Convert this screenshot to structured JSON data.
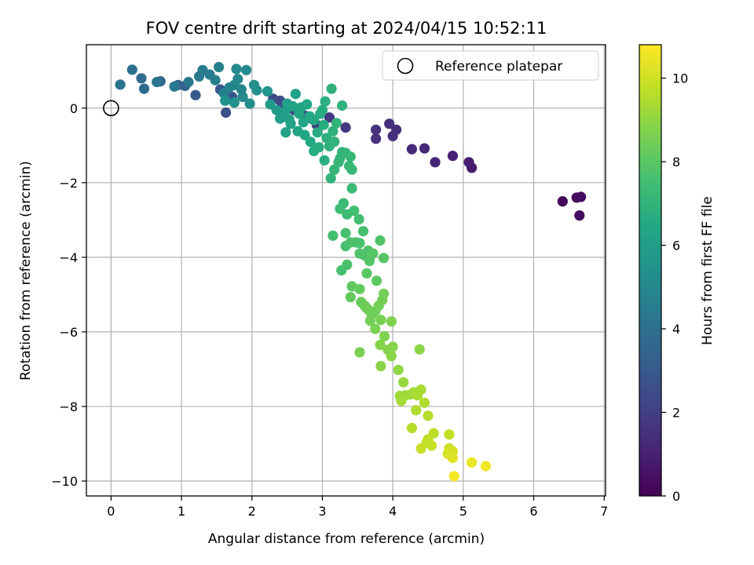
{
  "chart_data": {
    "type": "scatter",
    "title": "FOV centre drift starting at 2024/04/15 10:52:11",
    "xlabel": "Angular distance from reference (arcmin)",
    "ylabel": "Rotation from reference (arcmin)",
    "xlim": [
      -0.35,
      7.02
    ],
    "ylim": [
      -10.4,
      1.7
    ],
    "xticks": [
      0,
      1,
      2,
      3,
      4,
      5,
      6,
      7
    ],
    "yticks": [
      -10,
      -8,
      -6,
      -4,
      -2,
      0
    ],
    "xtick_labels": [
      "0",
      "1",
      "2",
      "3",
      "4",
      "5",
      "6",
      "7"
    ],
    "ytick_labels": [
      "−10",
      "−8",
      "−6",
      "−4",
      "−2",
      "0"
    ],
    "grid": true,
    "colormap": "viridis",
    "colorbar": {
      "label": "Hours from first FF file",
      "range": [
        0,
        10.8
      ],
      "ticks": [
        0,
        2,
        4,
        6,
        8,
        10
      ],
      "tick_labels": [
        "0",
        "2",
        "4",
        "6",
        "8",
        "10"
      ]
    },
    "legend": {
      "placement": "top-right",
      "entries": [
        {
          "label": "Reference platepar",
          "marker": "open-circle"
        }
      ]
    },
    "reference_point": {
      "x": 0,
      "y": 0
    },
    "series": [
      {
        "points": [
          {
            "x": 6.41,
            "y": -2.5,
            "c": 0.2
          },
          {
            "x": 6.61,
            "y": -2.4,
            "c": 0.3
          },
          {
            "x": 6.67,
            "y": -2.38,
            "c": 0.35
          },
          {
            "x": 6.65,
            "y": -2.88,
            "c": 0.4
          },
          {
            "x": 5.12,
            "y": -1.6,
            "c": 0.8
          },
          {
            "x": 5.08,
            "y": -1.45,
            "c": 0.9
          },
          {
            "x": 4.85,
            "y": -1.28,
            "c": 1.0
          },
          {
            "x": 4.6,
            "y": -1.45,
            "c": 1.1
          },
          {
            "x": 4.45,
            "y": -1.08,
            "c": 1.2
          },
          {
            "x": 4.27,
            "y": -1.1,
            "c": 1.3
          },
          {
            "x": 4.05,
            "y": -0.58,
            "c": 1.4
          },
          {
            "x": 3.95,
            "y": -0.42,
            "c": 1.45
          },
          {
            "x": 4.0,
            "y": -0.75,
            "c": 1.5
          },
          {
            "x": 3.76,
            "y": -0.58,
            "c": 1.55
          },
          {
            "x": 3.76,
            "y": -0.82,
            "c": 1.6
          },
          {
            "x": 3.33,
            "y": -0.52,
            "c": 1.7
          },
          {
            "x": 3.1,
            "y": -0.25,
            "c": 1.8
          },
          {
            "x": 2.92,
            "y": -0.45,
            "c": 1.9
          },
          {
            "x": 2.86,
            "y": -0.3,
            "c": 2.0
          },
          {
            "x": 2.75,
            "y": -0.2,
            "c": 2.1
          },
          {
            "x": 2.6,
            "y": -0.05,
            "c": 2.2
          },
          {
            "x": 2.45,
            "y": 0.1,
            "c": 2.3
          },
          {
            "x": 2.4,
            "y": 0.2,
            "c": 2.4
          },
          {
            "x": 2.3,
            "y": 0.25,
            "c": 2.5
          },
          {
            "x": 1.63,
            "y": -0.12,
            "c": 2.6
          },
          {
            "x": 1.72,
            "y": 0.3,
            "c": 2.9
          },
          {
            "x": 1.55,
            "y": 0.5,
            "c": 3.0
          },
          {
            "x": 1.2,
            "y": 0.35,
            "c": 3.1
          },
          {
            "x": 1.05,
            "y": 0.6,
            "c": 3.3
          },
          {
            "x": 0.95,
            "y": 0.62,
            "c": 3.4
          },
          {
            "x": 0.7,
            "y": 0.72,
            "c": 3.5
          },
          {
            "x": 0.47,
            "y": 0.52,
            "c": 3.7
          },
          {
            "x": 0.43,
            "y": 0.8,
            "c": 3.8
          },
          {
            "x": 0.3,
            "y": 1.03,
            "c": 4.0
          },
          {
            "x": 0.13,
            "y": 0.63,
            "c": 4.1
          },
          {
            "x": 0.65,
            "y": 0.7,
            "c": 4.2
          },
          {
            "x": 0.9,
            "y": 0.58,
            "c": 4.3
          },
          {
            "x": 1.1,
            "y": 0.7,
            "c": 4.3
          },
          {
            "x": 1.25,
            "y": 0.85,
            "c": 4.4
          },
          {
            "x": 1.3,
            "y": 1.02,
            "c": 4.5
          },
          {
            "x": 1.4,
            "y": 0.9,
            "c": 4.5
          },
          {
            "x": 1.48,
            "y": 0.75,
            "c": 4.6
          },
          {
            "x": 1.53,
            "y": 1.1,
            "c": 4.7
          },
          {
            "x": 1.6,
            "y": 0.4,
            "c": 4.7
          },
          {
            "x": 1.68,
            "y": 0.55,
            "c": 4.8
          },
          {
            "x": 1.75,
            "y": 0.62,
            "c": 4.9
          },
          {
            "x": 1.8,
            "y": 0.78,
            "c": 5.0
          },
          {
            "x": 1.87,
            "y": 0.3,
            "c": 5.0
          },
          {
            "x": 1.92,
            "y": 1.02,
            "c": 5.1
          },
          {
            "x": 1.97,
            "y": 0.12,
            "c": 5.2
          },
          {
            "x": 2.03,
            "y": 0.62,
            "c": 5.3
          },
          {
            "x": 2.07,
            "y": 0.48,
            "c": 5.3
          },
          {
            "x": 1.78,
            "y": 1.05,
            "c": 5.0
          },
          {
            "x": 1.85,
            "y": 0.5,
            "c": 4.9
          },
          {
            "x": 1.62,
            "y": 0.2,
            "c": 5.4
          },
          {
            "x": 1.75,
            "y": 0.15,
            "c": 5.5
          },
          {
            "x": 2.22,
            "y": 0.45,
            "c": 5.6
          },
          {
            "x": 2.26,
            "y": 0.1,
            "c": 5.8
          },
          {
            "x": 2.35,
            "y": -0.05,
            "c": 5.9
          },
          {
            "x": 2.4,
            "y": -0.28,
            "c": 6.0
          },
          {
            "x": 2.47,
            "y": -0.1,
            "c": 6.0
          },
          {
            "x": 2.5,
            "y": 0.12,
            "c": 6.1
          },
          {
            "x": 2.53,
            "y": -0.3,
            "c": 6.1
          },
          {
            "x": 2.58,
            "y": 0.05,
            "c": 6.2
          },
          {
            "x": 2.62,
            "y": 0.38,
            "c": 6.2
          },
          {
            "x": 2.67,
            "y": -0.15,
            "c": 6.3
          },
          {
            "x": 2.7,
            "y": 0.02,
            "c": 6.3
          },
          {
            "x": 2.73,
            "y": -0.38,
            "c": 6.4
          },
          {
            "x": 2.78,
            "y": 0.1,
            "c": 6.4
          },
          {
            "x": 2.82,
            "y": -0.22,
            "c": 6.5
          },
          {
            "x": 2.88,
            "y": -0.32,
            "c": 6.5
          },
          {
            "x": 2.93,
            "y": -0.65,
            "c": 6.6
          },
          {
            "x": 2.97,
            "y": -0.15,
            "c": 6.6
          },
          {
            "x": 3.02,
            "y": -0.45,
            "c": 6.7
          },
          {
            "x": 3.0,
            "y": -0.05,
            "c": 6.7
          },
          {
            "x": 3.04,
            "y": 0.18,
            "c": 6.8
          },
          {
            "x": 3.13,
            "y": 0.52,
            "c": 6.9
          },
          {
            "x": 3.06,
            "y": -0.8,
            "c": 6.8
          },
          {
            "x": 3.1,
            "y": -1.02,
            "c": 6.9
          },
          {
            "x": 3.15,
            "y": -0.62,
            "c": 6.9
          },
          {
            "x": 3.17,
            "y": -0.9,
            "c": 7.0
          },
          {
            "x": 3.2,
            "y": -0.4,
            "c": 7.0
          },
          {
            "x": 3.25,
            "y": -1.35,
            "c": 7.1
          },
          {
            "x": 3.28,
            "y": 0.07,
            "c": 6.9
          },
          {
            "x": 2.65,
            "y": -0.62,
            "c": 6.3
          },
          {
            "x": 2.75,
            "y": -0.72,
            "c": 6.4
          },
          {
            "x": 2.83,
            "y": -0.9,
            "c": 6.5
          },
          {
            "x": 2.88,
            "y": -1.15,
            "c": 6.6
          },
          {
            "x": 2.95,
            "y": -1.05,
            "c": 6.7
          },
          {
            "x": 3.03,
            "y": -1.4,
            "c": 6.8
          },
          {
            "x": 2.48,
            "y": -0.65,
            "c": 6.2
          },
          {
            "x": 2.55,
            "y": -0.42,
            "c": 6.2
          },
          {
            "x": 3.12,
            "y": -1.88,
            "c": 7.0
          },
          {
            "x": 3.17,
            "y": -1.65,
            "c": 7.1
          },
          {
            "x": 3.23,
            "y": -1.45,
            "c": 7.1
          },
          {
            "x": 3.28,
            "y": -1.18,
            "c": 7.0
          },
          {
            "x": 3.33,
            "y": -1.2,
            "c": 7.1
          },
          {
            "x": 3.4,
            "y": -1.3,
            "c": 7.2
          },
          {
            "x": 3.42,
            "y": -1.65,
            "c": 7.2
          },
          {
            "x": 3.38,
            "y": -1.55,
            "c": 7.2
          },
          {
            "x": 3.42,
            "y": -2.15,
            "c": 7.3
          },
          {
            "x": 3.3,
            "y": -2.55,
            "c": 7.3
          },
          {
            "x": 3.25,
            "y": -2.7,
            "c": 7.4
          },
          {
            "x": 3.35,
            "y": -2.85,
            "c": 7.4
          },
          {
            "x": 3.45,
            "y": -2.75,
            "c": 7.5
          },
          {
            "x": 3.52,
            "y": -2.98,
            "c": 7.5
          },
          {
            "x": 3.58,
            "y": -3.3,
            "c": 7.6
          },
          {
            "x": 3.15,
            "y": -3.42,
            "c": 7.5
          },
          {
            "x": 3.33,
            "y": -3.35,
            "c": 7.6
          },
          {
            "x": 3.33,
            "y": -3.7,
            "c": 7.6
          },
          {
            "x": 3.4,
            "y": -3.6,
            "c": 7.7
          },
          {
            "x": 3.48,
            "y": -3.6,
            "c": 7.7
          },
          {
            "x": 3.53,
            "y": -3.62,
            "c": 7.7
          },
          {
            "x": 3.53,
            "y": -3.9,
            "c": 7.8
          },
          {
            "x": 3.6,
            "y": -3.95,
            "c": 7.8
          },
          {
            "x": 3.65,
            "y": -3.82,
            "c": 7.8
          },
          {
            "x": 3.72,
            "y": -3.9,
            "c": 7.9
          },
          {
            "x": 3.67,
            "y": -4.1,
            "c": 7.9
          },
          {
            "x": 3.63,
            "y": -4.43,
            "c": 8.0
          },
          {
            "x": 3.82,
            "y": -3.55,
            "c": 7.8
          },
          {
            "x": 3.87,
            "y": -4.02,
            "c": 7.9
          },
          {
            "x": 3.35,
            "y": -4.2,
            "c": 7.7
          },
          {
            "x": 3.27,
            "y": -4.35,
            "c": 7.6
          },
          {
            "x": 3.77,
            "y": -4.63,
            "c": 8.1
          },
          {
            "x": 3.42,
            "y": -4.78,
            "c": 8.1
          },
          {
            "x": 3.53,
            "y": -4.85,
            "c": 8.2
          },
          {
            "x": 3.4,
            "y": -5.07,
            "c": 8.2
          },
          {
            "x": 3.55,
            "y": -5.2,
            "c": 8.3
          },
          {
            "x": 3.6,
            "y": -5.3,
            "c": 8.3
          },
          {
            "x": 3.65,
            "y": -5.4,
            "c": 8.4
          },
          {
            "x": 3.7,
            "y": -5.55,
            "c": 8.4
          },
          {
            "x": 3.75,
            "y": -5.45,
            "c": 8.4
          },
          {
            "x": 3.8,
            "y": -5.3,
            "c": 8.5
          },
          {
            "x": 3.85,
            "y": -5.15,
            "c": 8.5
          },
          {
            "x": 3.87,
            "y": -4.98,
            "c": 8.5
          },
          {
            "x": 3.68,
            "y": -5.7,
            "c": 8.5
          },
          {
            "x": 3.75,
            "y": -5.92,
            "c": 8.6
          },
          {
            "x": 3.83,
            "y": -5.68,
            "c": 8.6
          },
          {
            "x": 3.98,
            "y": -5.72,
            "c": 8.7
          },
          {
            "x": 3.62,
            "y": -5.35,
            "c": 8.4
          },
          {
            "x": 3.88,
            "y": -6.12,
            "c": 8.7
          },
          {
            "x": 3.82,
            "y": -6.35,
            "c": 8.8
          },
          {
            "x": 3.93,
            "y": -6.48,
            "c": 8.8
          },
          {
            "x": 4.0,
            "y": -6.4,
            "c": 8.8
          },
          {
            "x": 3.98,
            "y": -6.65,
            "c": 8.9
          },
          {
            "x": 3.53,
            "y": -6.55,
            "c": 8.6
          },
          {
            "x": 3.83,
            "y": -6.92,
            "c": 8.9
          },
          {
            "x": 4.38,
            "y": -6.47,
            "c": 8.9
          },
          {
            "x": 4.08,
            "y": -7.02,
            "c": 9.0
          },
          {
            "x": 4.15,
            "y": -7.35,
            "c": 9.1
          },
          {
            "x": 4.1,
            "y": -7.72,
            "c": 9.2
          },
          {
            "x": 4.18,
            "y": -7.7,
            "c": 9.2
          },
          {
            "x": 4.12,
            "y": -7.85,
            "c": 9.3
          },
          {
            "x": 4.25,
            "y": -7.68,
            "c": 9.3
          },
          {
            "x": 4.3,
            "y": -7.62,
            "c": 9.3
          },
          {
            "x": 4.35,
            "y": -7.7,
            "c": 9.4
          },
          {
            "x": 4.4,
            "y": -7.55,
            "c": 9.4
          },
          {
            "x": 4.45,
            "y": -7.9,
            "c": 9.5
          },
          {
            "x": 4.33,
            "y": -8.1,
            "c": 9.5
          },
          {
            "x": 4.5,
            "y": -8.25,
            "c": 9.6
          },
          {
            "x": 4.27,
            "y": -8.58,
            "c": 9.6
          },
          {
            "x": 4.58,
            "y": -8.72,
            "c": 9.7
          },
          {
            "x": 4.5,
            "y": -8.88,
            "c": 9.8
          },
          {
            "x": 4.55,
            "y": -9.05,
            "c": 9.9
          },
          {
            "x": 4.4,
            "y": -9.13,
            "c": 9.9
          },
          {
            "x": 4.48,
            "y": -8.97,
            "c": 9.8
          },
          {
            "x": 4.8,
            "y": -8.75,
            "c": 9.8
          },
          {
            "x": 4.8,
            "y": -9.12,
            "c": 10.0
          },
          {
            "x": 4.85,
            "y": -9.2,
            "c": 10.1
          },
          {
            "x": 4.82,
            "y": -9.3,
            "c": 10.2
          },
          {
            "x": 4.85,
            "y": -9.38,
            "c": 10.3
          },
          {
            "x": 4.78,
            "y": -9.27,
            "c": 10.2
          },
          {
            "x": 5.12,
            "y": -9.5,
            "c": 10.5
          },
          {
            "x": 5.32,
            "y": -9.6,
            "c": 10.6
          },
          {
            "x": 4.87,
            "y": -9.87,
            "c": 10.7
          }
        ]
      }
    ]
  }
}
